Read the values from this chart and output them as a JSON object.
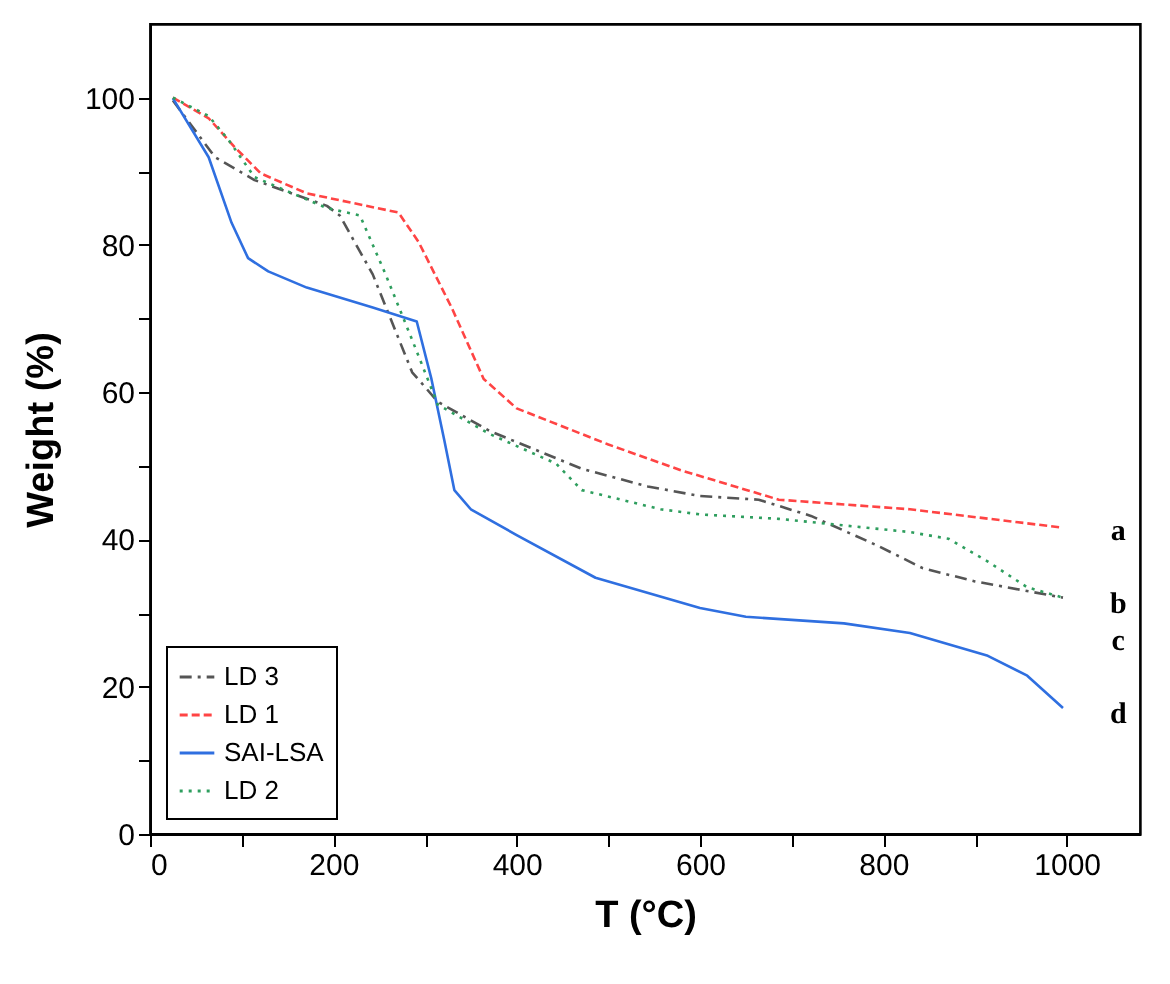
{
  "chart_data": {
    "type": "line",
    "xlabel": "T (°C)",
    "ylabel": "Weight (%)",
    "xlim": [
      0,
      1080
    ],
    "ylim": [
      0,
      110
    ],
    "xticks": [
      0,
      {
        "value": 100,
        "label": null
      },
      200,
      {
        "value": 300,
        "label": null
      },
      400,
      {
        "value": 500,
        "label": null
      },
      600,
      {
        "value": 700,
        "label": null
      },
      800,
      {
        "value": 900,
        "label": null
      },
      1000
    ],
    "yticks": [
      0,
      {
        "value": 10,
        "label": null
      },
      20,
      {
        "value": 30,
        "label": null
      },
      40,
      {
        "value": 50,
        "label": null
      },
      60,
      {
        "value": 70,
        "label": null
      },
      80,
      {
        "value": 90,
        "label": null
      },
      100
    ],
    "grid": false,
    "legend": "bottom left",
    "marker": "none",
    "series": [
      {
        "name": "LD 3",
        "color": "#555555",
        "line_style": "dashdot",
        "x": [
          25,
          71,
          114,
          193,
          207,
          243,
          286,
          314,
          371,
          471,
          543,
          600,
          664,
          721,
          793,
          843,
          900,
          996
        ],
        "values": [
          99.6,
          91.9,
          88.8,
          85.3,
          84,
          76,
          62.7,
          58.7,
          54.7,
          49.6,
          47.2,
          45.9,
          45.4,
          43.2,
          39.2,
          36.1,
          34.3,
          32.1
        ]
      },
      {
        "name": "LD 1",
        "color": "#ff4444",
        "line_style": "dashed",
        "x": [
          25,
          64,
          93,
          121,
          171,
          271,
          293,
          329,
          364,
          400,
          500,
          579,
          686,
          829,
          996
        ],
        "values": [
          100,
          97.2,
          93.2,
          89.7,
          87,
          84.4,
          80.4,
          71.5,
          61.8,
          57.8,
          52.9,
          49.4,
          45.4,
          44.1,
          41.6
        ]
      },
      {
        "name": "SAI-LSA",
        "color": "#2f6fe0",
        "line_style": "solid",
        "x": [
          25,
          64,
          89,
          107,
          129,
          171,
          243,
          291,
          307,
          321,
          332,
          350,
          400,
          486,
          600,
          650,
          757,
          829,
          914,
          957,
          996
        ],
        "values": [
          99.9,
          91.9,
          83,
          78.2,
          76.4,
          74.2,
          71.5,
          69.6,
          61.8,
          53.5,
          46.7,
          44.1,
          40.6,
          34.8,
          30.7,
          29.5,
          28.6,
          27.3,
          24.2,
          21.5,
          17.1
        ]
      },
      {
        "name": "LD 2",
        "color": "#2e9e5e",
        "line_style": "dotted",
        "x": [
          25,
          64,
          86,
          114,
          193,
          229,
          257,
          286,
          314,
          371,
          443,
          471,
          557,
          600,
          686,
          829,
          871,
          914,
          957,
          996
        ],
        "values": [
          100,
          97.5,
          94.2,
          89.2,
          85,
          84,
          76,
          67.1,
          58.3,
          54.3,
          50.3,
          46.7,
          44.1,
          43.4,
          42.8,
          41,
          40.1,
          37,
          33.5,
          32.1
        ]
      }
    ],
    "annotations": [
      "a",
      "b",
      "c",
      "d"
    ]
  }
}
